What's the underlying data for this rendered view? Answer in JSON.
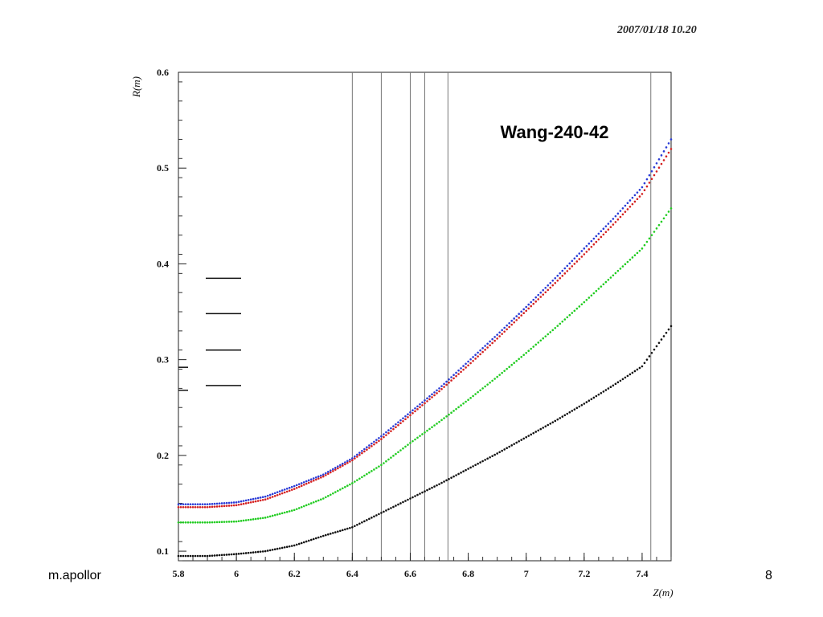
{
  "slide": {
    "timestamp": "2007/01/18   10.20",
    "footer_left": "m.apollor",
    "page_number": "8"
  },
  "chart_data": {
    "type": "scatter",
    "xlabel": "Z(m)",
    "ylabel": "R(m)",
    "xlim": [
      5.8,
      7.5
    ],
    "ylim": [
      0.09,
      0.6
    ],
    "xticks": [
      5.8,
      6,
      6.2,
      6.4,
      6.6,
      6.8,
      7,
      7.2,
      7.4
    ],
    "xtick_labels": [
      "5.8",
      "6",
      "6.2",
      "6.4",
      "6.6",
      "6.8",
      "7",
      "7.2",
      "7.4"
    ],
    "yticks": [
      0.1,
      0.2,
      0.3,
      0.4,
      0.5,
      0.6
    ],
    "ytick_labels": [
      "0.1",
      "0.2",
      "0.3",
      "0.4",
      "0.5",
      "0.6"
    ],
    "annotation": "Wang-240-42",
    "vertical_lines": [
      6.4,
      6.5,
      6.6,
      6.65,
      6.73,
      7.43
    ],
    "legend_marks": [
      0.385,
      0.348,
      0.31,
      0.273
    ],
    "left_axis_marks": [
      0.292,
      0.268
    ],
    "colors": {
      "blue": "#2a3bd6",
      "red": "#d42020",
      "green": "#22cc22",
      "black": "#111111"
    },
    "series": [
      {
        "color": "blue",
        "x": [
          5.8,
          5.9,
          6.0,
          6.1,
          6.2,
          6.3,
          6.4,
          6.5,
          6.6,
          6.7,
          6.8,
          6.9,
          7.0,
          7.1,
          7.2,
          7.3,
          7.4,
          7.5
        ],
        "y": [
          0.149,
          0.149,
          0.151,
          0.157,
          0.168,
          0.18,
          0.197,
          0.22,
          0.245,
          0.27,
          0.298,
          0.326,
          0.355,
          0.385,
          0.416,
          0.447,
          0.48,
          0.53
        ]
      },
      {
        "color": "red",
        "x": [
          5.8,
          5.9,
          6.0,
          6.1,
          6.2,
          6.3,
          6.4,
          6.5,
          6.6,
          6.7,
          6.8,
          6.9,
          7.0,
          7.1,
          7.2,
          7.3,
          7.4,
          7.5
        ],
        "y": [
          0.146,
          0.146,
          0.148,
          0.154,
          0.165,
          0.178,
          0.195,
          0.217,
          0.242,
          0.267,
          0.294,
          0.322,
          0.351,
          0.38,
          0.41,
          0.441,
          0.473,
          0.52
        ]
      },
      {
        "color": "green",
        "x": [
          5.8,
          5.9,
          6.0,
          6.1,
          6.2,
          6.3,
          6.4,
          6.5,
          6.6,
          6.7,
          6.8,
          6.9,
          7.0,
          7.1,
          7.2,
          7.3,
          7.4,
          7.5
        ],
        "y": [
          0.13,
          0.13,
          0.131,
          0.135,
          0.143,
          0.155,
          0.171,
          0.19,
          0.213,
          0.235,
          0.258,
          0.282,
          0.307,
          0.333,
          0.36,
          0.388,
          0.416,
          0.458
        ]
      },
      {
        "color": "black",
        "x": [
          5.8,
          5.9,
          6.0,
          6.1,
          6.2,
          6.3,
          6.4,
          6.5,
          6.6,
          6.7,
          6.8,
          6.9,
          7.0,
          7.1,
          7.2,
          7.3,
          7.4,
          7.5
        ],
        "y": [
          0.095,
          0.095,
          0.097,
          0.1,
          0.106,
          0.116,
          0.125,
          0.14,
          0.155,
          0.17,
          0.186,
          0.202,
          0.219,
          0.236,
          0.254,
          0.273,
          0.293,
          0.335
        ]
      }
    ]
  }
}
